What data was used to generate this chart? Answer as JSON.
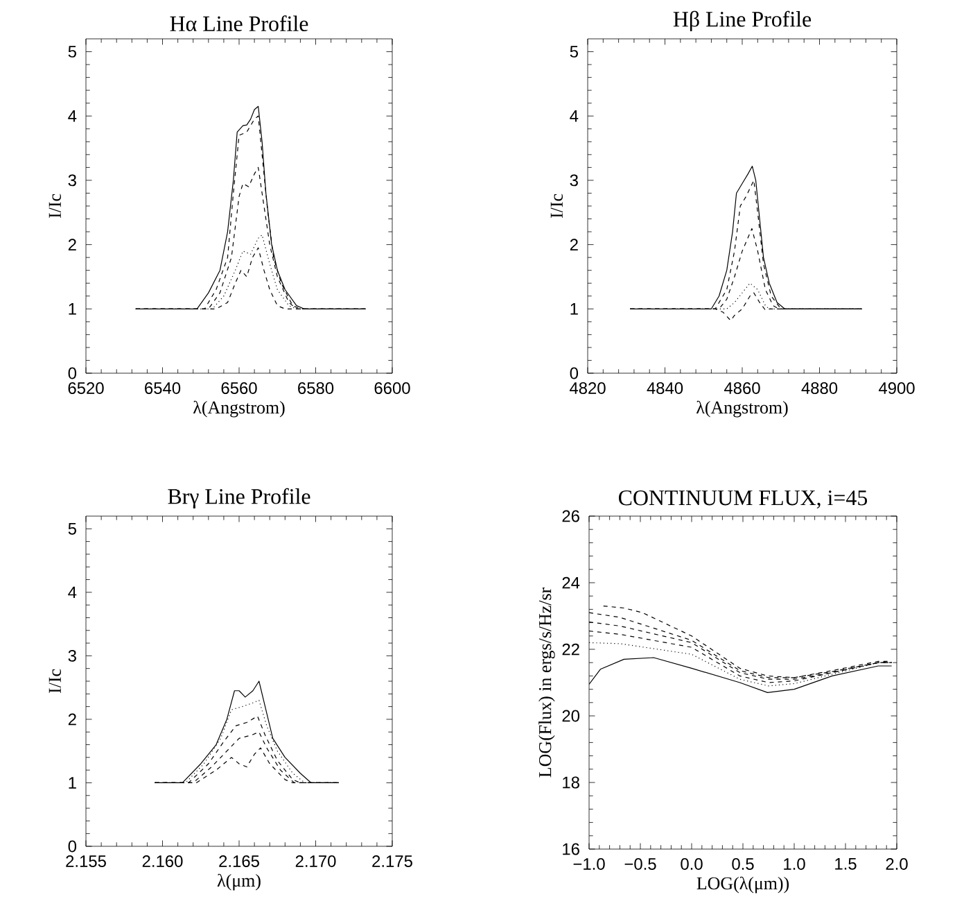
{
  "chart_data": [
    {
      "type": "line",
      "title": "Hα Line Profile",
      "xlabel": "λ(Angstrom)",
      "ylabel": "I/Ic",
      "xlim": [
        6520,
        6600
      ],
      "ylim": [
        0,
        5.2
      ],
      "xticks": [
        6520,
        6540,
        6560,
        6580,
        6600
      ],
      "yticks": [
        0,
        1,
        2,
        3,
        4,
        5
      ],
      "series": [
        {
          "color": "#000000",
          "line_style": "solid",
          "x": [
            6533,
            6549,
            6552,
            6555,
            6557,
            6558.5,
            6559.5,
            6561,
            6562,
            6563,
            6564,
            6565,
            6566,
            6567,
            6568.5,
            6570,
            6572,
            6575,
            6577,
            6593
          ],
          "values": [
            1,
            1,
            1.25,
            1.6,
            2.2,
            3.0,
            3.75,
            3.85,
            3.86,
            3.95,
            4.1,
            4.15,
            3.6,
            2.8,
            2.0,
            1.6,
            1.3,
            1.05,
            1,
            1
          ]
        },
        {
          "color": "#000000",
          "line_style": "dashed",
          "x": [
            6533,
            6551,
            6554,
            6557,
            6558.5,
            6560,
            6562,
            6564,
            6565,
            6566,
            6567.5,
            6569,
            6571,
            6574,
            6576,
            6593
          ],
          "values": [
            1,
            1,
            1.3,
            1.8,
            2.8,
            3.7,
            3.75,
            3.95,
            4.0,
            3.4,
            2.5,
            1.8,
            1.4,
            1.05,
            1,
            1
          ]
        },
        {
          "color": "#000000",
          "line_style": "dashed",
          "x": [
            6533,
            6552,
            6555,
            6558,
            6560,
            6561,
            6562.5,
            6564,
            6565,
            6566,
            6568,
            6570,
            6573,
            6575,
            6593
          ],
          "values": [
            1,
            1,
            1.25,
            1.8,
            2.75,
            2.95,
            2.9,
            3.1,
            3.2,
            2.8,
            2.0,
            1.5,
            1.1,
            1,
            1
          ]
        },
        {
          "color": "#000000",
          "line_style": "dotted",
          "x": [
            6533,
            6553,
            6556,
            6559,
            6561,
            6563,
            6565,
            6566,
            6568,
            6570,
            6573,
            6575,
            6593
          ],
          "values": [
            1,
            1,
            1.2,
            1.6,
            1.9,
            1.85,
            2.1,
            2.15,
            1.7,
            1.3,
            1.05,
            1,
            1
          ]
        },
        {
          "color": "#000000",
          "line_style": "dashed",
          "x": [
            6533,
            6554,
            6557,
            6559,
            6560.5,
            6562,
            6563.5,
            6565,
            6566.5,
            6568,
            6570,
            6572,
            6593
          ],
          "values": [
            1,
            1,
            1.1,
            1.4,
            1.6,
            1.5,
            1.8,
            1.95,
            1.6,
            1.3,
            1.05,
            1,
            1
          ]
        }
      ]
    },
    {
      "type": "line",
      "title": "Hβ Line Profile",
      "xlabel": "λ(Angstrom)",
      "ylabel": "I/Ic",
      "xlim": [
        4820,
        4900
      ],
      "ylim": [
        0,
        5.2
      ],
      "xticks": [
        4820,
        4840,
        4860,
        4880,
        4900
      ],
      "yticks": [
        0,
        1,
        2,
        3,
        4,
        5
      ],
      "series": [
        {
          "color": "#000000",
          "line_style": "solid",
          "x": [
            4831,
            4852,
            4854,
            4856,
            4857.5,
            4858.5,
            4860,
            4861.5,
            4862.6,
            4863.5,
            4864.5,
            4865.5,
            4867,
            4869,
            4871,
            4891
          ],
          "values": [
            1,
            1,
            1.2,
            1.6,
            2.2,
            2.8,
            2.95,
            3.1,
            3.22,
            3.0,
            2.4,
            1.8,
            1.4,
            1.1,
            1,
            1
          ]
        },
        {
          "color": "#000000",
          "line_style": "dashed",
          "x": [
            4831,
            4853,
            4856,
            4858,
            4859.5,
            4861,
            4863,
            4864,
            4865.5,
            4867.5,
            4870,
            4891
          ],
          "values": [
            1,
            1,
            1.3,
            1.9,
            2.6,
            2.75,
            3.0,
            2.5,
            1.7,
            1.2,
            1,
            1
          ]
        },
        {
          "color": "#000000",
          "line_style": "dashed",
          "x": [
            4831,
            4854,
            4856,
            4858,
            4860,
            4862.5,
            4864,
            4866,
            4868,
            4869.5,
            4891
          ],
          "values": [
            1,
            1,
            1.15,
            1.5,
            1.9,
            2.25,
            1.9,
            1.3,
            1.05,
            1,
            1
          ]
        },
        {
          "color": "#000000",
          "line_style": "dotted",
          "x": [
            4831,
            4856,
            4858,
            4860,
            4862,
            4864,
            4866,
            4867,
            4891
          ],
          "values": [
            1,
            1,
            1.1,
            1.25,
            1.4,
            1.3,
            1.05,
            1,
            1
          ]
        },
        {
          "color": "#000000",
          "line_style": "dashed",
          "x": [
            4831,
            4853,
            4855,
            4857,
            4858,
            4860,
            4862,
            4863,
            4864.5,
            4866,
            4867,
            4891
          ],
          "values": [
            1,
            1,
            0.95,
            0.82,
            0.9,
            1.0,
            1.2,
            1.25,
            1.1,
            0.98,
            1,
            1
          ]
        }
      ]
    },
    {
      "type": "line",
      "title": "Brγ Line Profile",
      "xlabel": "λ(μm)",
      "ylabel": "I/Ic",
      "xlim": [
        2.155,
        2.175
      ],
      "ylim": [
        0,
        5.2
      ],
      "xticks": [
        2.155,
        {
          "value": 2.16,
          "label": "2.160"
        },
        2.165,
        {
          "value": 2.17,
          "label": "2.170"
        },
        2.175
      ],
      "yticks": [
        0,
        1,
        2,
        3,
        4,
        5
      ],
      "series": [
        {
          "color": "#000000",
          "line_style": "solid",
          "x": [
            2.1595,
            2.1613,
            2.1625,
            2.1635,
            2.1642,
            2.1647,
            2.165,
            2.1654,
            2.1659,
            2.1663,
            2.1667,
            2.1672,
            2.168,
            2.169,
            2.1697,
            2.1715
          ],
          "values": [
            1,
            1,
            1.3,
            1.6,
            2.0,
            2.45,
            2.45,
            2.35,
            2.45,
            2.6,
            2.2,
            1.7,
            1.4,
            1.15,
            1,
            1
          ]
        },
        {
          "color": "#000000",
          "line_style": "dotted",
          "x": [
            2.1595,
            2.1615,
            2.1627,
            2.1638,
            2.1645,
            2.1652,
            2.1658,
            2.1663,
            2.1668,
            2.1675,
            2.1685,
            2.1693,
            2.1715
          ],
          "values": [
            1,
            1,
            1.3,
            1.7,
            2.15,
            2.2,
            2.25,
            2.3,
            1.9,
            1.5,
            1.15,
            1,
            1
          ]
        },
        {
          "color": "#000000",
          "line_style": "dashed",
          "x": [
            2.1595,
            2.1617,
            2.163,
            2.164,
            2.1648,
            2.1655,
            2.1662,
            2.1667,
            2.1675,
            2.1685,
            2.169,
            2.1715
          ],
          "values": [
            1,
            1,
            1.3,
            1.65,
            1.9,
            1.95,
            2.05,
            1.75,
            1.35,
            1.05,
            1,
            1
          ]
        },
        {
          "color": "#000000",
          "line_style": "dashed",
          "x": [
            2.1595,
            2.162,
            2.1632,
            2.1642,
            2.165,
            2.1658,
            2.1663,
            2.1668,
            2.1677,
            2.1686,
            2.1715
          ],
          "values": [
            1,
            1,
            1.25,
            1.5,
            1.7,
            1.75,
            1.8,
            1.55,
            1.2,
            1,
            1
          ]
        },
        {
          "color": "#000000",
          "line_style": "dashed",
          "x": [
            2.1595,
            2.1622,
            2.1635,
            2.1645,
            2.165,
            2.1655,
            2.166,
            2.1664,
            2.167,
            2.168,
            2.1685,
            2.1715
          ],
          "values": [
            1,
            1,
            1.2,
            1.4,
            1.3,
            1.25,
            1.45,
            1.55,
            1.3,
            1.05,
            1,
            1
          ]
        }
      ]
    },
    {
      "type": "line",
      "title": "CONTINUUM FLUX, i=45",
      "xlabel": "LOG(λ(μm))",
      "ylabel": "LOG(Flux) in ergs/s/Hz/sr",
      "xlim": [
        -1.0,
        2.0
      ],
      "ylim": [
        16,
        26
      ],
      "xticks": [
        {
          "value": -1.0,
          "label": "−1.0"
        },
        {
          "value": -0.5,
          "label": "−0.5"
        },
        {
          "value": 0.0,
          "label": "0.0"
        },
        {
          "value": 0.5,
          "label": "0.5"
        },
        {
          "value": 1.0,
          "label": "1.0"
        },
        {
          "value": 1.5,
          "label": "1.5"
        },
        {
          "value": 2.0,
          "label": "2.0"
        }
      ],
      "yticks": [
        16,
        18,
        20,
        22,
        24,
        26
      ],
      "series": [
        {
          "color": "#000000",
          "line_style": "solid",
          "x": [
            -1.0,
            -0.89,
            -0.66,
            -0.37,
            0.0,
            0.47,
            0.74,
            1.0,
            1.37,
            1.82,
            1.95
          ],
          "values": [
            20.95,
            21.4,
            21.7,
            21.75,
            21.43,
            21.0,
            20.7,
            20.8,
            21.2,
            21.5,
            21.5
          ]
        },
        {
          "color": "#000000",
          "line_style": "dashed",
          "x": [
            -0.86,
            -0.66,
            -0.48,
            0.0,
            0.47,
            0.74,
            1.0,
            1.37,
            1.82,
            1.95
          ],
          "values": [
            23.3,
            23.24,
            23.1,
            22.4,
            21.43,
            21.2,
            21.15,
            21.36,
            21.64,
            21.64
          ]
        },
        {
          "color": "#000000",
          "line_style": "dashed",
          "x": [
            -1.0,
            -0.7,
            0.0,
            0.47,
            0.75,
            1.0,
            1.37,
            1.82,
            1.95
          ],
          "values": [
            23.1,
            22.96,
            22.27,
            21.36,
            21.15,
            21.15,
            21.33,
            21.6,
            21.6
          ]
        },
        {
          "color": "#000000",
          "line_style": "dashed",
          "x": [
            -1.0,
            -0.7,
            0.0,
            0.47,
            0.75,
            1.0,
            1.37,
            1.82,
            1.95
          ],
          "values": [
            22.82,
            22.7,
            22.2,
            21.3,
            21.1,
            21.1,
            21.3,
            21.6,
            21.6
          ]
        },
        {
          "color": "#000000",
          "line_style": "dashed",
          "x": [
            -1.0,
            -0.7,
            0.0,
            0.47,
            0.75,
            1.0,
            1.37,
            1.82,
            1.95
          ],
          "values": [
            22.55,
            22.45,
            22.06,
            21.2,
            21.0,
            21.05,
            21.3,
            21.6,
            21.6
          ]
        },
        {
          "color": "#000000",
          "line_style": "dotted",
          "x": [
            -1.0,
            -0.7,
            0.0,
            0.47,
            0.75,
            1.0,
            1.37,
            1.82,
            1.95
          ],
          "values": [
            22.2,
            22.17,
            21.85,
            21.1,
            20.9,
            20.97,
            21.25,
            21.6,
            21.6
          ]
        }
      ]
    }
  ]
}
